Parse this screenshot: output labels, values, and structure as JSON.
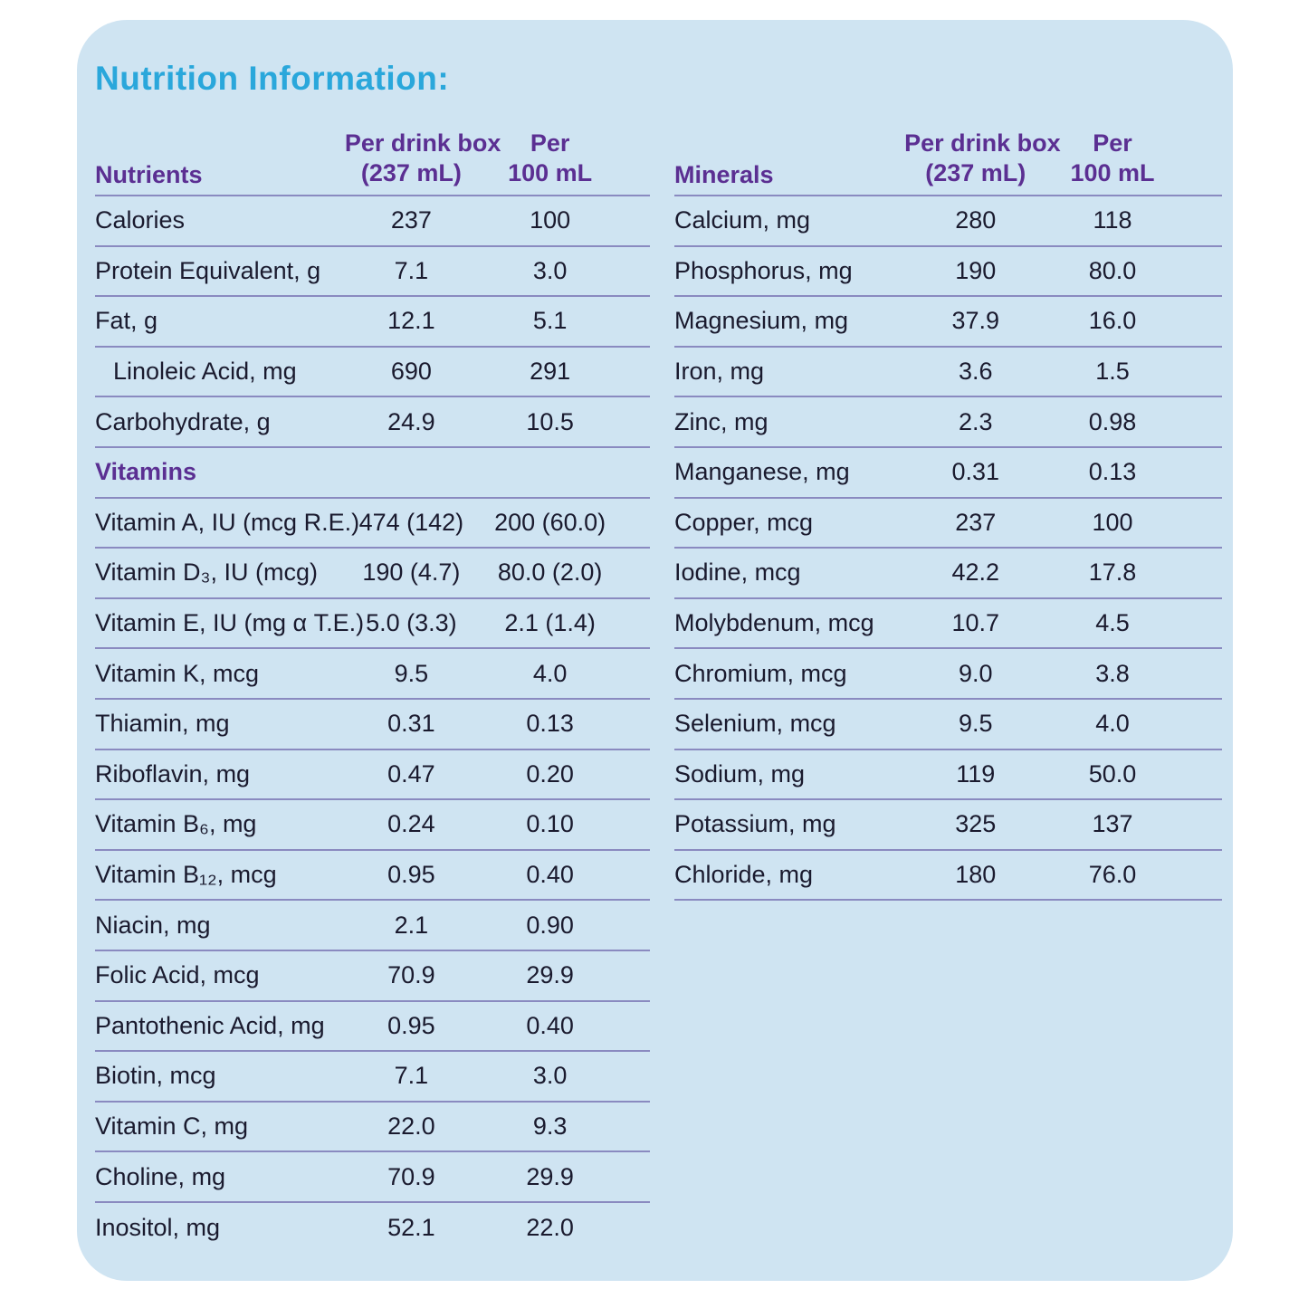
{
  "title": "Nutrition Information:",
  "colors": {
    "accent_cyan": "#2aa7db",
    "header_purple": "#5b2f92",
    "card_background": "#cfe4f2",
    "row_text": "#1a1a2e",
    "separator": "#8a8ac0"
  },
  "tables": [
    {
      "name": "nutrients",
      "header": {
        "label": "Nutrients",
        "col1_line1": "Per drink box",
        "col1_line2": "(237 mL)",
        "col2_line1": "Per",
        "col2_line2": "100 mL"
      },
      "rows": [
        {
          "label": "Calories",
          "v1": "237",
          "v2": "100"
        },
        {
          "label": "Protein Equivalent, g",
          "v1": "7.1",
          "v2": "3.0"
        },
        {
          "label": "Fat, g",
          "v1": "12.1",
          "v2": "5.1"
        },
        {
          "label": "Linoleic Acid, mg",
          "v1": "690",
          "v2": "291",
          "indent": true
        },
        {
          "label": "Carbohydrate, g",
          "v1": "24.9",
          "v2": "10.5"
        },
        {
          "label": "Vitamins",
          "v1": "",
          "v2": "",
          "section": true
        },
        {
          "label": "Vitamin A, IU (mcg R.E.)",
          "v1": "474 (142)",
          "v2": "200 (60.0)"
        },
        {
          "label": "Vitamin D₃, IU (mcg)",
          "v1": "190 (4.7)",
          "v2": "80.0 (2.0)"
        },
        {
          "label": "Vitamin E, IU (mg α T.E.)",
          "v1": "5.0 (3.3)",
          "v2": "2.1 (1.4)"
        },
        {
          "label": "Vitamin K, mcg",
          "v1": "9.5",
          "v2": "4.0"
        },
        {
          "label": "Thiamin, mg",
          "v1": "0.31",
          "v2": "0.13"
        },
        {
          "label": "Riboflavin, mg",
          "v1": "0.47",
          "v2": "0.20"
        },
        {
          "label": "Vitamin B₆, mg",
          "v1": "0.24",
          "v2": "0.10"
        },
        {
          "label": "Vitamin B₁₂, mcg",
          "v1": "0.95",
          "v2": "0.40"
        },
        {
          "label": "Niacin, mg",
          "v1": "2.1",
          "v2": "0.90"
        },
        {
          "label": "Folic Acid, mcg",
          "v1": "70.9",
          "v2": "29.9"
        },
        {
          "label": "Pantothenic Acid, mg",
          "v1": "0.95",
          "v2": "0.40"
        },
        {
          "label": "Biotin, mcg",
          "v1": "7.1",
          "v2": "3.0"
        },
        {
          "label": "Vitamin C, mg",
          "v1": "22.0",
          "v2": "9.3"
        },
        {
          "label": "Choline, mg",
          "v1": "70.9",
          "v2": "29.9"
        },
        {
          "label": "Inositol, mg",
          "v1": "52.1",
          "v2": "22.0"
        }
      ]
    },
    {
      "name": "minerals",
      "header": {
        "label": "Minerals",
        "col1_line1": "Per drink box",
        "col1_line2": "(237 mL)",
        "col2_line1": "Per",
        "col2_line2": "100 mL"
      },
      "rows": [
        {
          "label": "Calcium, mg",
          "v1": "280",
          "v2": "118"
        },
        {
          "label": "Phosphorus, mg",
          "v1": "190",
          "v2": "80.0"
        },
        {
          "label": "Magnesium, mg",
          "v1": "37.9",
          "v2": "16.0"
        },
        {
          "label": "Iron, mg",
          "v1": "3.6",
          "v2": "1.5"
        },
        {
          "label": "Zinc, mg",
          "v1": "2.3",
          "v2": "0.98"
        },
        {
          "label": "Manganese, mg",
          "v1": "0.31",
          "v2": "0.13"
        },
        {
          "label": "Copper, mcg",
          "v1": "237",
          "v2": "100"
        },
        {
          "label": "Iodine, mcg",
          "v1": "42.2",
          "v2": "17.8"
        },
        {
          "label": "Molybdenum, mcg",
          "v1": "10.7",
          "v2": "4.5"
        },
        {
          "label": "Chromium, mcg",
          "v1": "9.0",
          "v2": "3.8"
        },
        {
          "label": "Selenium, mcg",
          "v1": "9.5",
          "v2": "4.0"
        },
        {
          "label": "Sodium, mg",
          "v1": "119",
          "v2": "50.0"
        },
        {
          "label": "Potassium, mg",
          "v1": "325",
          "v2": "137"
        },
        {
          "label": "Chloride, mg",
          "v1": "180",
          "v2": "76.0"
        }
      ]
    }
  ]
}
